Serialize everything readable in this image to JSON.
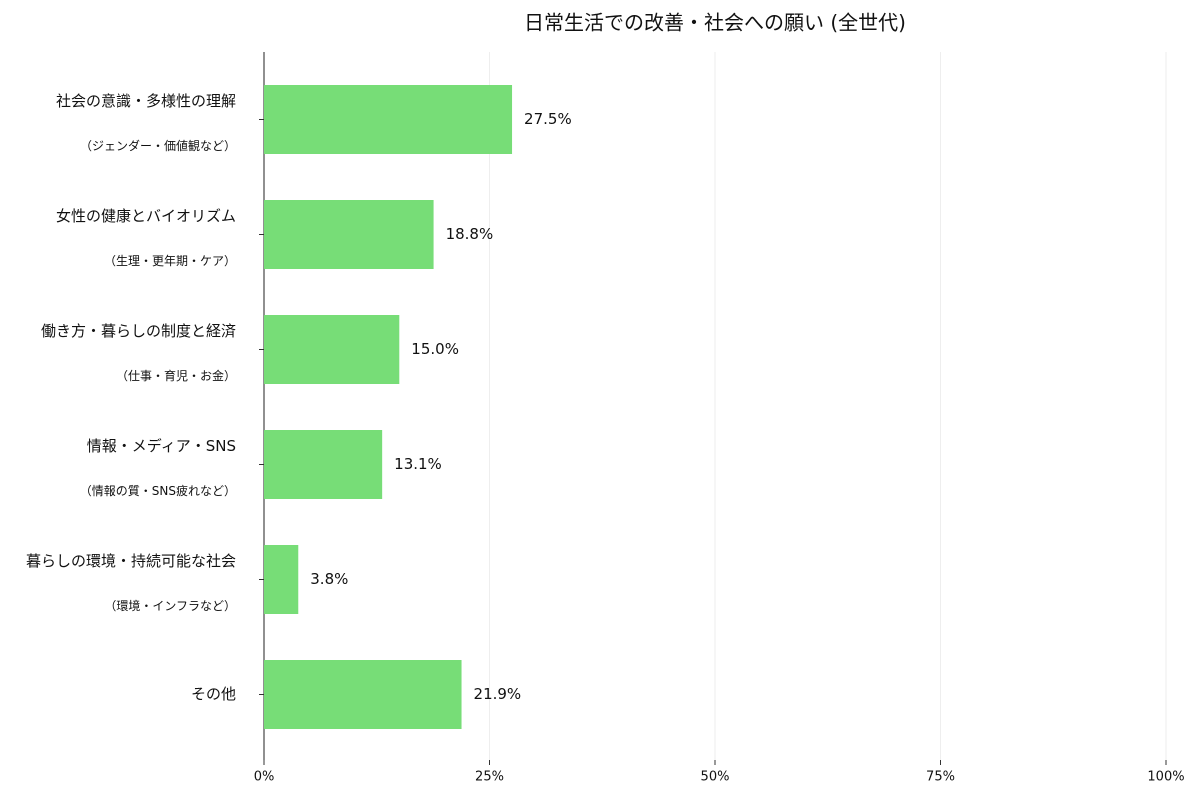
{
  "chart_data": {
    "type": "barh",
    "title": "日常生活での改善・社会への願い (全世代)",
    "categories": [
      "社会の意識・多様性の理解",
      "女性の健康とバイオリズム",
      "働き方・暮らしの制度と経済",
      "情報・メディア・SNS",
      "暮らしの環境・持続可能な社会",
      "その他"
    ],
    "category_notes": [
      "（ジェンダー・価値観など）",
      "（生理・更年期・ケア）",
      "（仕事・育児・お金）",
      "（情報の質・SNS疲れなど）",
      "（環境・インフラなど）",
      null
    ],
    "values": [
      27.5,
      18.8,
      15.0,
      13.1,
      3.8,
      21.9
    ],
    "value_labels": [
      "27.5%",
      "18.8%",
      "15.0%",
      "13.1%",
      "3.8%",
      "21.9%"
    ],
    "color": "#77dd77",
    "xlim": [
      0,
      100
    ],
    "xticks": [
      {
        "value": 0,
        "label": "0%"
      },
      {
        "value": 25,
        "label": "25%"
      },
      {
        "value": 50,
        "label": "50%"
      },
      {
        "value": 75,
        "label": "75%"
      },
      {
        "value": 100,
        "label": "100%"
      }
    ],
    "grid": true
  }
}
